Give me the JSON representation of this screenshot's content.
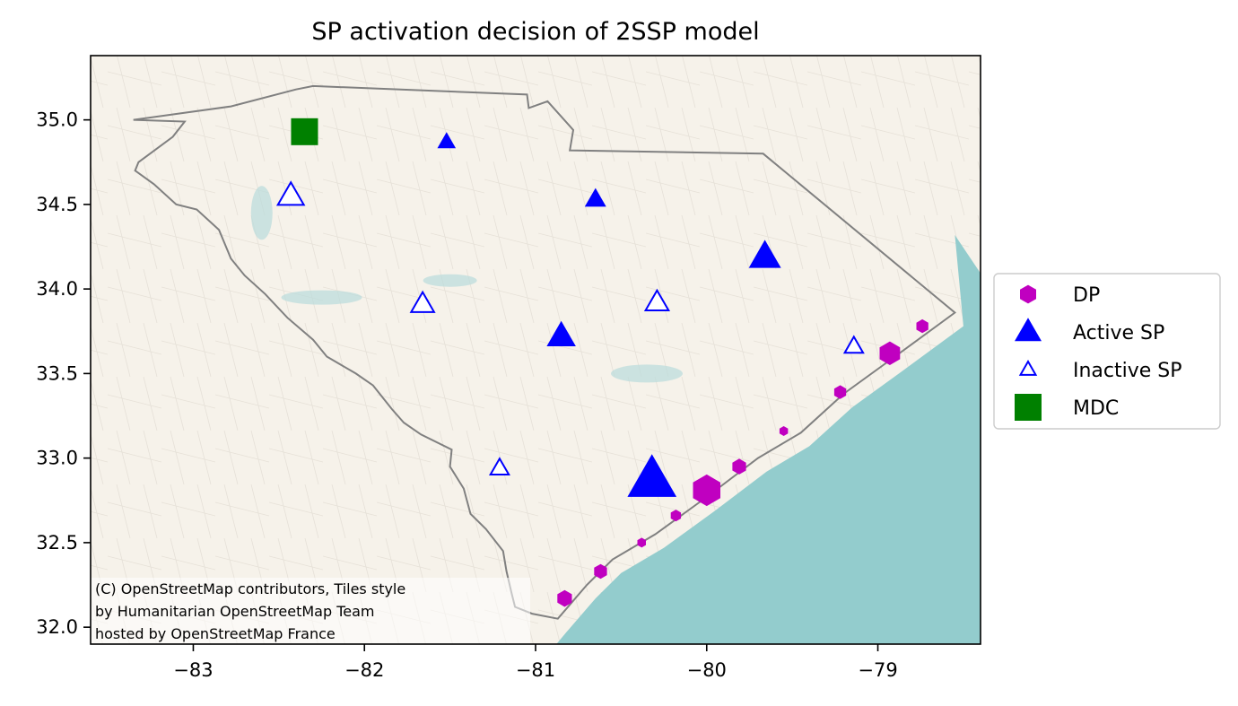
{
  "chart_data": {
    "type": "scatter",
    "title": "SP activation decision of 2SSP model",
    "xlabel": "",
    "ylabel": "",
    "xlim": [
      -83.6,
      -78.4
    ],
    "ylim": [
      31.9,
      35.38
    ],
    "x_ticks": [
      -83,
      -82,
      -81,
      -80,
      -79
    ],
    "x_tick_labels": [
      "−83",
      "−82",
      "−81",
      "−80",
      "−79"
    ],
    "y_ticks": [
      32.0,
      32.5,
      33.0,
      33.5,
      34.0,
      34.5,
      35.0
    ],
    "y_tick_labels": [
      "32.0",
      "32.5",
      "33.0",
      "33.5",
      "34.0",
      "34.5",
      "35.0"
    ],
    "grid": false,
    "legend_position": "right",
    "basemap": "OpenStreetMap Humanitarian tiles",
    "attribution": [
      "(C) OpenStreetMap contributors, Tiles style",
      "by Humanitarian OpenStreetMap Team",
      "hosted by OpenStreetMap France"
    ],
    "colors": {
      "dp": "#c000c0",
      "active_sp": "#0000ff",
      "inactive_sp": "#0000ff",
      "mdc": "#008000",
      "sea": "#93cccd",
      "land": "#f7f3ec",
      "boundary": "#808080"
    },
    "series": [
      {
        "name": "DP",
        "marker": "hexagon",
        "points": [
          {
            "lon": -80.0,
            "lat": 32.81,
            "size": 3.2
          },
          {
            "lon": -78.93,
            "lat": 33.62,
            "size": 2.4
          },
          {
            "lon": -80.83,
            "lat": 32.17,
            "size": 1.7
          },
          {
            "lon": -80.62,
            "lat": 32.33,
            "size": 1.5
          },
          {
            "lon": -79.81,
            "lat": 32.95,
            "size": 1.6
          },
          {
            "lon": -79.22,
            "lat": 33.39,
            "size": 1.4
          },
          {
            "lon": -78.74,
            "lat": 33.78,
            "size": 1.4
          },
          {
            "lon": -80.18,
            "lat": 32.66,
            "size": 1.2
          },
          {
            "lon": -80.38,
            "lat": 32.5,
            "size": 1.0
          },
          {
            "lon": -79.55,
            "lat": 33.16,
            "size": 1.0
          }
        ]
      },
      {
        "name": "Active SP",
        "marker": "triangle-filled",
        "points": [
          {
            "lon": -80.32,
            "lat": 32.87,
            "size": 3.2
          },
          {
            "lon": -79.66,
            "lat": 34.19,
            "size": 2.1
          },
          {
            "lon": -80.85,
            "lat": 33.72,
            "size": 1.9
          },
          {
            "lon": -80.65,
            "lat": 34.53,
            "size": 1.4
          },
          {
            "lon": -81.52,
            "lat": 34.87,
            "size": 1.2
          }
        ]
      },
      {
        "name": "Inactive SP",
        "marker": "triangle-open",
        "points": [
          {
            "lon": -82.43,
            "lat": 34.55,
            "size": 1.7
          },
          {
            "lon": -81.66,
            "lat": 33.91,
            "size": 1.5
          },
          {
            "lon": -80.29,
            "lat": 33.92,
            "size": 1.5
          },
          {
            "lon": -79.14,
            "lat": 33.66,
            "size": 1.2
          },
          {
            "lon": -81.21,
            "lat": 32.94,
            "size": 1.2
          }
        ]
      },
      {
        "name": "MDC",
        "marker": "square",
        "points": [
          {
            "lon": -82.35,
            "lat": 34.93,
            "size": 1.0
          }
        ]
      }
    ],
    "sc_boundary": [
      [
        -83.35,
        35.0
      ],
      [
        -82.78,
        35.08
      ],
      [
        -82.4,
        35.18
      ],
      [
        -82.3,
        35.2
      ],
      [
        -81.05,
        35.15
      ],
      [
        -81.04,
        35.07
      ],
      [
        -80.93,
        35.11
      ],
      [
        -80.78,
        34.94
      ],
      [
        -80.8,
        34.82
      ],
      [
        -79.67,
        34.8
      ],
      [
        -78.55,
        33.86
      ],
      [
        -78.9,
        33.6
      ],
      [
        -79.2,
        33.38
      ],
      [
        -79.45,
        33.15
      ],
      [
        -79.7,
        33.0
      ],
      [
        -80.0,
        32.77
      ],
      [
        -80.3,
        32.55
      ],
      [
        -80.55,
        32.4
      ],
      [
        -80.7,
        32.25
      ],
      [
        -80.87,
        32.05
      ],
      [
        -81.02,
        32.08
      ],
      [
        -81.12,
        32.12
      ],
      [
        -81.14,
        32.2
      ],
      [
        -81.17,
        32.33
      ],
      [
        -81.19,
        32.45
      ],
      [
        -81.29,
        32.58
      ],
      [
        -81.38,
        32.67
      ],
      [
        -81.42,
        32.82
      ],
      [
        -81.5,
        32.95
      ],
      [
        -81.49,
        33.05
      ],
      [
        -81.67,
        33.14
      ],
      [
        -81.77,
        33.21
      ],
      [
        -81.84,
        33.29
      ],
      [
        -81.95,
        33.43
      ],
      [
        -82.05,
        33.5
      ],
      [
        -82.22,
        33.6
      ],
      [
        -82.3,
        33.7
      ],
      [
        -82.45,
        33.83
      ],
      [
        -82.58,
        33.97
      ],
      [
        -82.7,
        34.08
      ],
      [
        -82.78,
        34.18
      ],
      [
        -82.85,
        34.35
      ],
      [
        -82.98,
        34.47
      ],
      [
        -83.1,
        34.5
      ],
      [
        -83.23,
        34.62
      ],
      [
        -83.34,
        34.7
      ],
      [
        -83.32,
        34.75
      ],
      [
        -83.12,
        34.9
      ],
      [
        -83.05,
        34.99
      ],
      [
        -83.35,
        35.0
      ]
    ]
  }
}
